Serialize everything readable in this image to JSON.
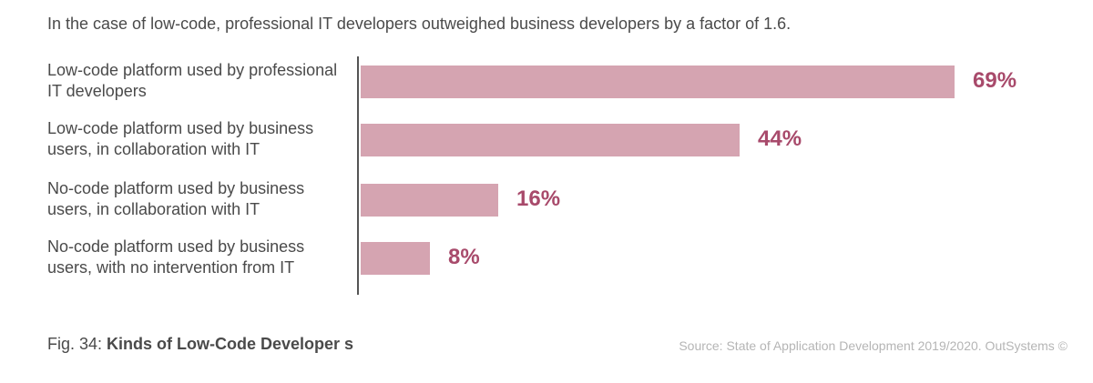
{
  "subtitle": "In the case of low-code, professional IT developers outweighed business developers by a factor of 1.6.",
  "caption": {
    "prefix": "Fig. 34: ",
    "title": "Kinds of Low-Code Developer s"
  },
  "source": "Source: State of Application Development 2019/2020. OutSystems ©",
  "colors": {
    "bar": "#d5a4b1",
    "value_label": "#a84a6b",
    "text": "#4a4a4a"
  },
  "chart_data": {
    "type": "bar",
    "orientation": "horizontal",
    "categories": [
      "Low-code platform used by professional IT developers",
      "Low-code platform used by business users, in collaboration with IT",
      "No-code platform used by business users, in collaboration with IT",
      "No-code platform used by business users, with no intervention from IT"
    ],
    "values": [
      69,
      44,
      16,
      8
    ],
    "value_labels": [
      "69%",
      "44%",
      "16%",
      "8%"
    ],
    "unit": "%",
    "xlim": [
      0,
      69
    ],
    "grid": false,
    "legend": "none"
  }
}
